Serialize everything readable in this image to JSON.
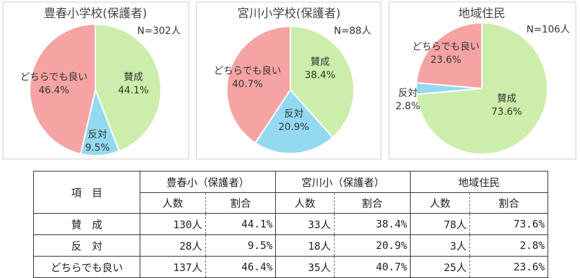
{
  "chart_data": [
    {
      "type": "pie",
      "title": "豊春小学校(保護者)",
      "annotation": "N=302人",
      "categories": [
        "賛成",
        "反対",
        "どちらでも良い"
      ],
      "values": [
        44.1,
        9.5,
        46.4
      ],
      "value_labels": [
        "44.1%",
        "9.5%",
        "46.4%"
      ],
      "colors": [
        "#cdedaa",
        "#93d9ef",
        "#f5a3a3"
      ]
    },
    {
      "type": "pie",
      "title": "宮川小学校(保護者)",
      "annotation": "N=88人",
      "categories": [
        "賛成",
        "反対",
        "どちらでも良い"
      ],
      "values": [
        38.4,
        20.9,
        40.7
      ],
      "value_labels": [
        "38.4%",
        "20.9%",
        "40.7%"
      ],
      "colors": [
        "#cdedaa",
        "#93d9ef",
        "#f5a3a3"
      ]
    },
    {
      "type": "pie",
      "title": "地域住民",
      "annotation": "N=106人",
      "categories": [
        "賛成",
        "反対",
        "どちらでも良い"
      ],
      "values": [
        73.6,
        2.8,
        23.6
      ],
      "value_labels": [
        "73.6%",
        "2.8%",
        "23.6%"
      ],
      "colors": [
        "#cdedaa",
        "#93d9ef",
        "#f5a3a3"
      ]
    }
  ],
  "table": {
    "header": [
      "項　目",
      "豊春小（保護者）",
      "宮川小（保護者）",
      "地域住民"
    ],
    "subheader": [
      "人数",
      "割合",
      "人数",
      "割合",
      "人数",
      "割合"
    ],
    "rows": [
      [
        "賛　成",
        "130人",
        "44.1%",
        "33人",
        "38.4%",
        "78人",
        "73.6%"
      ],
      [
        "反　対",
        "28人",
        "9.5%",
        "18人",
        "20.9%",
        "3人",
        "2.8%"
      ],
      [
        "どちらでも良い",
        "137人",
        "46.4%",
        "35人",
        "40.7%",
        "25人",
        "23.6%"
      ]
    ]
  }
}
